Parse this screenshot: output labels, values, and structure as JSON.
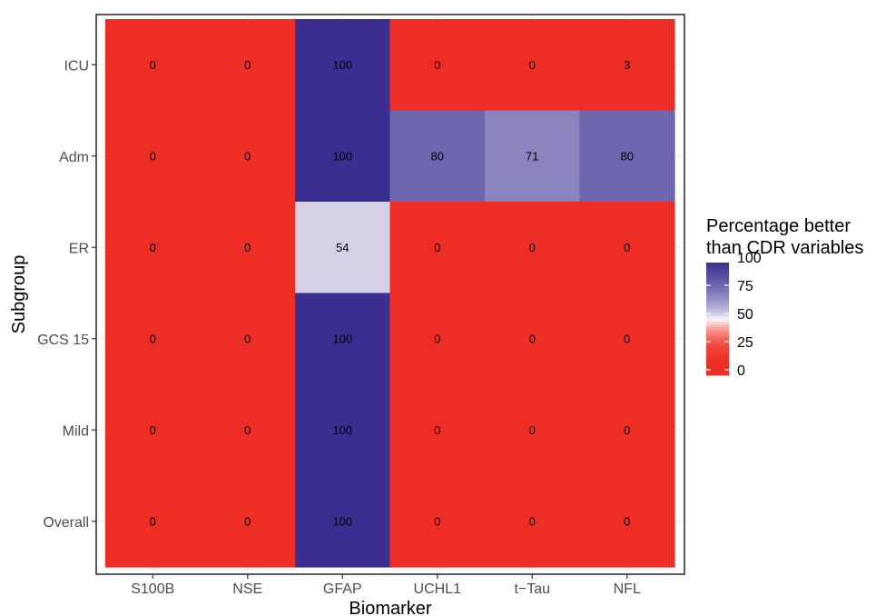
{
  "chart_data": {
    "type": "heatmap",
    "xlabel": "Biomarker",
    "ylabel": "Subgroup",
    "x_categories": [
      "S100B",
      "NSE",
      "GFAP",
      "UCHL1",
      "t−Tau",
      "NFL"
    ],
    "y_categories": [
      "ICU",
      "Adm",
      "ER",
      "GCS 15",
      "Mild",
      "Overall"
    ],
    "values": [
      [
        0,
        0,
        100,
        0,
        0,
        3
      ],
      [
        0,
        0,
        100,
        80,
        71,
        80
      ],
      [
        0,
        0,
        54,
        0,
        0,
        0
      ],
      [
        0,
        0,
        100,
        0,
        0,
        0
      ],
      [
        0,
        0,
        100,
        0,
        0,
        0
      ],
      [
        0,
        0,
        100,
        0,
        0,
        0
      ]
    ],
    "legend": {
      "title_lines": [
        "Percentage better",
        "than CDR variables"
      ],
      "ticks": [
        100,
        75,
        50,
        25,
        0
      ],
      "range": [
        0,
        100
      ],
      "colors": {
        "low": "#ee2e24",
        "mid": "#ffffff",
        "high": "#3a2f91"
      },
      "placement": "right"
    },
    "grid": true
  }
}
